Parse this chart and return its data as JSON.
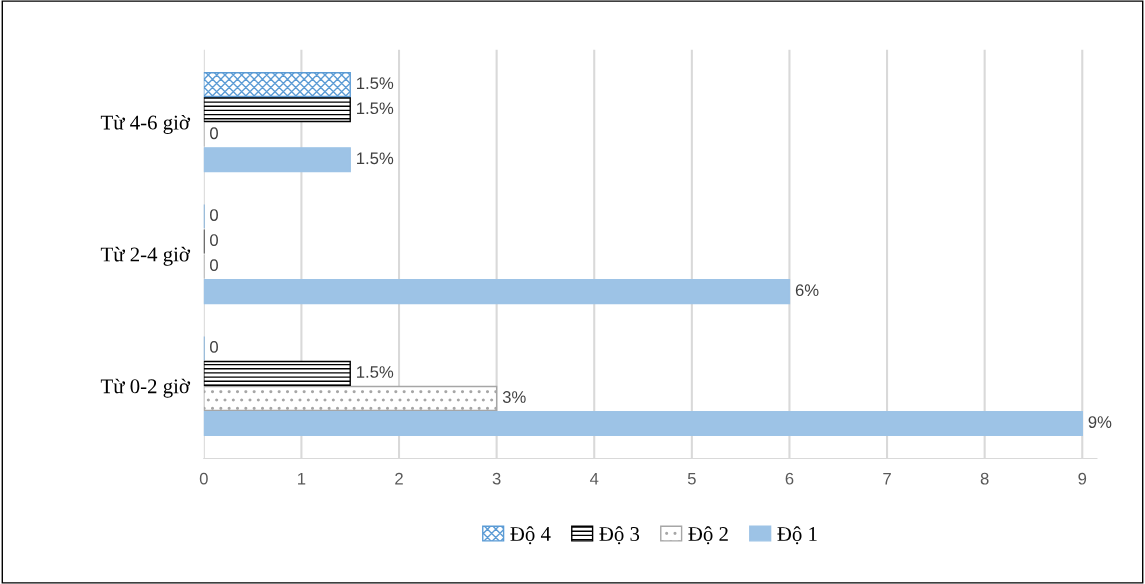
{
  "chart_data": {
    "type": "bar",
    "orientation": "horizontal",
    "categories": [
      "Từ 4-6 giờ",
      "Từ 2-4 giờ",
      "Từ 0-2 giờ"
    ],
    "series": [
      {
        "name": "Độ 1",
        "color": "#9dc3e6",
        "values": [
          1.5,
          6,
          9
        ],
        "value_labels": [
          "1.5%",
          "6%",
          "9%"
        ]
      },
      {
        "name": "Độ 2",
        "color": "#a6a6a6",
        "values": [
          0,
          0,
          3
        ],
        "value_labels": [
          "0",
          "0",
          "3%"
        ]
      },
      {
        "name": "Độ 3",
        "color": "#000000",
        "values": [
          1.5,
          0,
          1.5
        ],
        "value_labels": [
          "1.5%",
          "0",
          "1.5%"
        ]
      },
      {
        "name": "Độ 4",
        "color": "#5b9bd5",
        "values": [
          1.5,
          0,
          0
        ],
        "value_labels": [
          "1.5%",
          "0",
          "0"
        ]
      }
    ],
    "xlim": [
      0,
      9.15
    ],
    "xticks": [
      0,
      1,
      2,
      3,
      4,
      5,
      6,
      7,
      8,
      9
    ],
    "grid": "x",
    "legend": "bottom"
  }
}
